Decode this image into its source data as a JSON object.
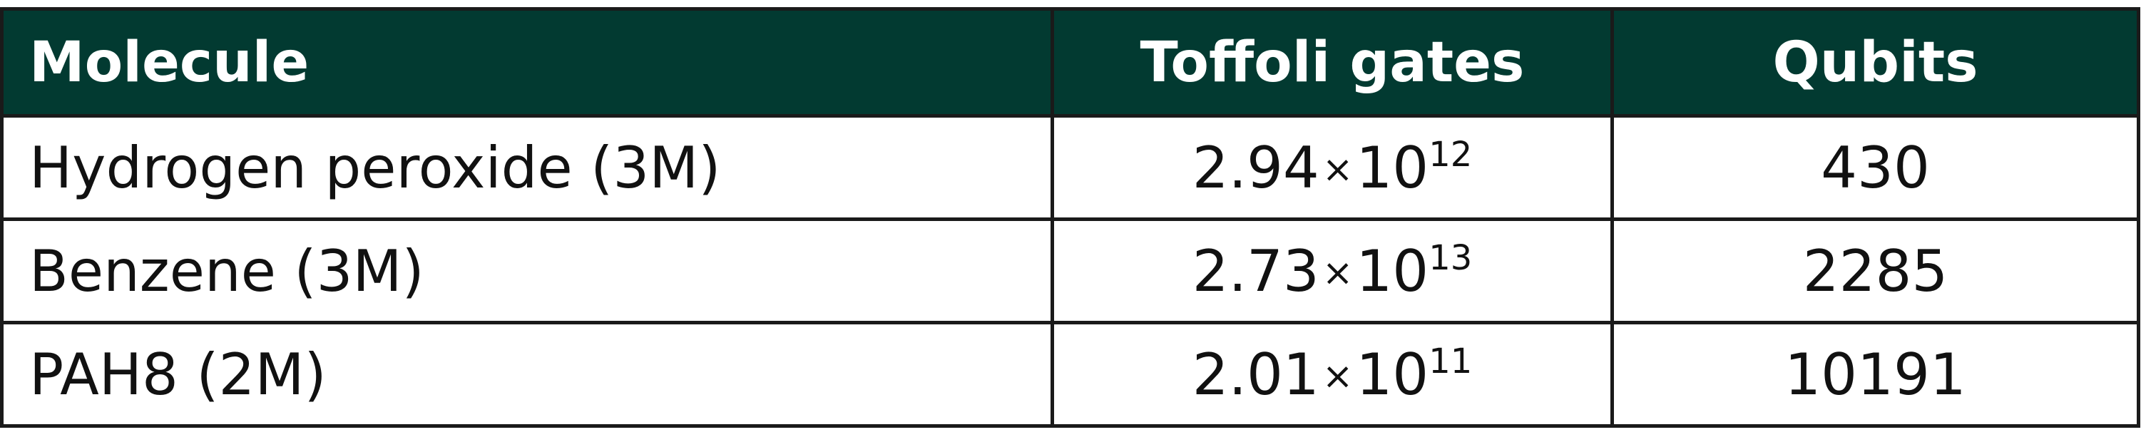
{
  "table": {
    "header": [
      "Molecule",
      "Toffoli gates",
      "Qubits"
    ],
    "rows": [
      [
        "Hydrogen peroxide (3M)",
        {
          "mantissa": "2.94",
          "times": "×",
          "base": "10",
          "exponent": "12"
        },
        430
      ],
      [
        "Benzene (3M)",
        {
          "mantissa": "2.73",
          "times": "×",
          "base": "10",
          "exponent": "13"
        },
        2285
      ],
      [
        "PAH8 (2M)",
        {
          "mantissa": "2.01",
          "times": "×",
          "base": "10",
          "exponent": "11"
        },
        10191
      ]
    ]
  }
}
